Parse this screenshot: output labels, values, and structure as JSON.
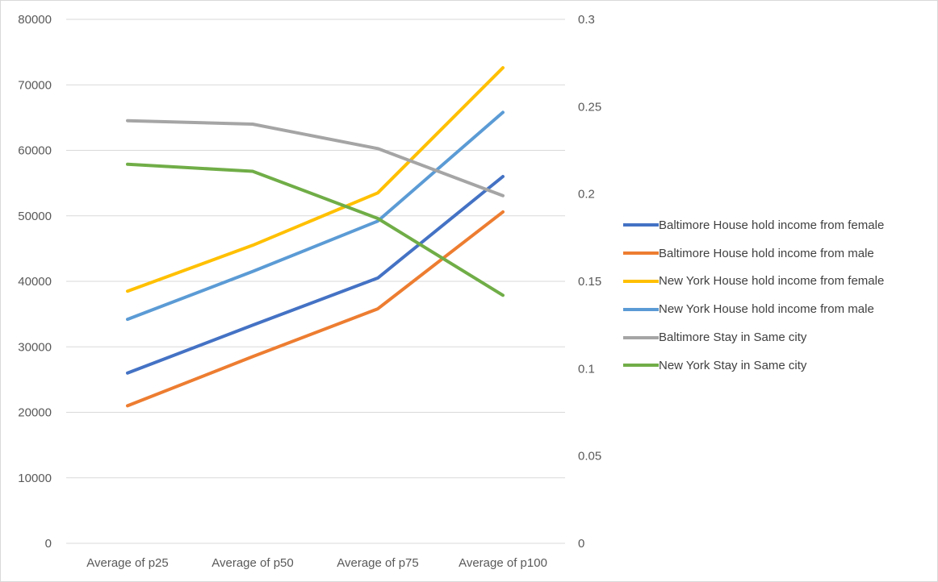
{
  "chart_data": {
    "type": "line",
    "categories": [
      "Average of p25",
      "Average of p50",
      "Average of p75",
      "Average of p100"
    ],
    "y_left": {
      "ylim": [
        0,
        80000
      ],
      "ticks": [
        0,
        10000,
        20000,
        30000,
        40000,
        50000,
        60000,
        70000,
        80000
      ]
    },
    "y_right": {
      "ylim": [
        0,
        0.3
      ],
      "ticks": [
        "0",
        "0.05",
        "0.1",
        "0.15",
        "0.2",
        "0.25",
        "0.3"
      ]
    },
    "grid": true,
    "legend_position": "right",
    "series": [
      {
        "name": "Baltimore House hold income from female",
        "axis": "left",
        "color": "#4472C4",
        "values": [
          26000,
          33300,
          40500,
          56000
        ]
      },
      {
        "name": "Baltimore House hold income from male",
        "axis": "left",
        "color": "#ED7D31",
        "values": [
          21000,
          28500,
          35800,
          50600
        ]
      },
      {
        "name": "New York House hold income from female",
        "axis": "left",
        "color": "#FFC000",
        "values": [
          38500,
          45500,
          53500,
          72600
        ]
      },
      {
        "name": "New York House hold income from male",
        "axis": "left",
        "color": "#5B9BD5",
        "values": [
          34200,
          41500,
          49200,
          65800
        ]
      },
      {
        "name": "Baltimore Stay in Same city",
        "axis": "right",
        "color": "#A5A5A5",
        "values": [
          0.242,
          0.24,
          0.226,
          0.199
        ]
      },
      {
        "name": "New York Stay in Same city",
        "axis": "right",
        "color": "#70AD47",
        "values": [
          0.217,
          0.213,
          0.186,
          0.142
        ]
      }
    ]
  }
}
